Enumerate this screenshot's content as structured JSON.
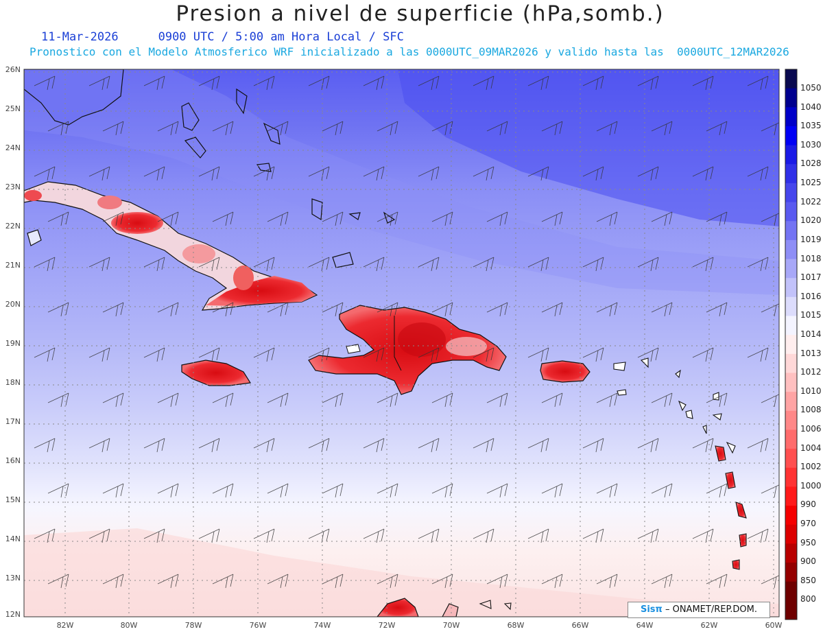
{
  "header": {
    "title": "Presion a nivel de superficie (hPa,somb.)",
    "date": "11-Mar-2026",
    "valid_time": "0900 UTC / 5:00 am Hora Local / SFC",
    "model_info": "Pronostico con el Modelo Atmosferico WRF inicializado a las 0000UTC_09MAR2026 y valido hasta las  0000UTC_12MAR2026"
  },
  "map": {
    "lat_labels": [
      "26N",
      "25N",
      "24N",
      "23N",
      "22N",
      "21N",
      "20N",
      "19N",
      "18N",
      "17N",
      "16N",
      "15N",
      "14N",
      "13N",
      "12N"
    ],
    "lon_labels": [
      "82W",
      "80W",
      "78W",
      "76W",
      "74W",
      "72W",
      "70W",
      "68W",
      "66W",
      "64W",
      "62W",
      "60W"
    ],
    "regions": [
      {
        "name": "Cuba",
        "color": "#e8343a"
      },
      {
        "name": "Hispaniola",
        "color": "#e01c22"
      },
      {
        "name": "Jamaica",
        "color": "#e32229"
      },
      {
        "name": "Puerto Rico",
        "color": "#e32229"
      }
    ]
  },
  "colorbar": {
    "levels": [
      "1050",
      "1040",
      "1035",
      "1030",
      "1028",
      "1025",
      "1022",
      "1020",
      "1019",
      "1018",
      "1017",
      "1016",
      "1015",
      "1014",
      "1013",
      "1012",
      "1010",
      "1008",
      "1006",
      "1004",
      "1002",
      "1000",
      "990",
      "970",
      "950",
      "900",
      "850",
      "800"
    ],
    "colors": [
      "#0a0a50",
      "#00008e",
      "#0000c8",
      "#0000f5",
      "#1a1ae6",
      "#3030e8",
      "#4646ec",
      "#5a5af0",
      "#7474f3",
      "#8e8ef6",
      "#a8a8f8",
      "#c2c2fa",
      "#dcdcfc",
      "#f4f4ff",
      "#ffeeee",
      "#ffd8d8",
      "#ffc0c0",
      "#ffa4a4",
      "#ff8888",
      "#ff6c6c",
      "#ff5050",
      "#ff3333",
      "#ff1a1a",
      "#f50000",
      "#dc0000",
      "#b80000",
      "#940000",
      "#6e0000"
    ]
  },
  "credit": {
    "logo": "Sisπ",
    "text": "– ONAMET/REP.DOM."
  }
}
